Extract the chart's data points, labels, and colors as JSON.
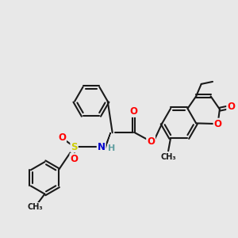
{
  "bg_color": "#e8e8e8",
  "bond_color": "#1a1a1a",
  "bond_width": 1.5,
  "atom_colors": {
    "O": "#ff0000",
    "N": "#0000cd",
    "S": "#cccc00",
    "C": "#1a1a1a",
    "H": "#5f9ea0"
  },
  "font_size": 8.5,
  "small_font": 7.0
}
